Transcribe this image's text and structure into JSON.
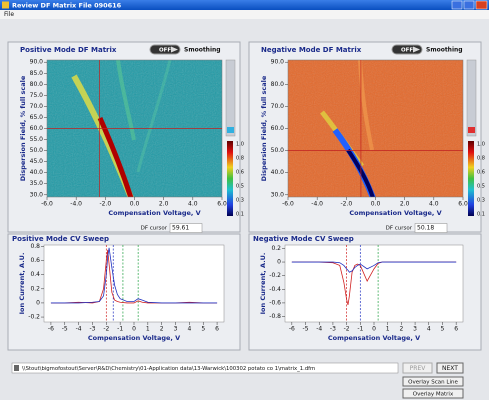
{
  "window": {
    "title": "Review DF Matrix File  090616",
    "menu": "File"
  },
  "matrices": [
    {
      "title": "Positive Mode DF Matrix",
      "toggle": "OFF",
      "toggle_label": "Smoothing",
      "ylabel": "Dispersion Field, % full scale",
      "xlabel": "Compensation Voltage, V",
      "xlim": [
        -6,
        6
      ],
      "ylim": [
        29,
        91
      ],
      "xticks": [
        {
          "value": -6,
          "label": "-6.0"
        },
        {
          "value": -4,
          "label": "-4.0"
        },
        {
          "value": -2,
          "label": "-2.0"
        },
        {
          "value": 0,
          "label": "0.0"
        },
        {
          "value": 2,
          "label": "2.0"
        },
        {
          "value": 4,
          "label": "4.0"
        },
        {
          "value": 6,
          "label": "6.0"
        }
      ],
      "yticks": [
        {
          "value": 90,
          "label": "90.0"
        },
        {
          "value": 85,
          "label": "85.0"
        },
        {
          "value": 80,
          "label": "80.0"
        },
        {
          "value": 75,
          "label": "75.0"
        },
        {
          "value": 70,
          "label": "70.0"
        },
        {
          "value": 65,
          "label": "65.0"
        },
        {
          "value": 60,
          "label": "60.0"
        },
        {
          "value": 55,
          "label": "55.0"
        },
        {
          "value": 50,
          "label": "50.0"
        },
        {
          "value": 45,
          "label": "45.0"
        },
        {
          "value": 40,
          "label": "40.0"
        },
        {
          "value": 35,
          "label": "35.0"
        },
        {
          "value": 30,
          "label": "30.0"
        }
      ],
      "cursor": {
        "x": -2.4,
        "y": 60
      },
      "colorbar": [
        "1.0",
        "0.8",
        "0.6",
        "0.5",
        "0.3",
        "0.1"
      ],
      "df_cursor_label": "DF cursor",
      "df_cursor": "59.61"
    },
    {
      "title": "Negative Mode DF Matrix",
      "toggle": "OFF",
      "toggle_label": "Smoothing",
      "ylabel": "Dispersion Field, % full scale",
      "xlabel": "Compensation Voltage, V",
      "xlim": [
        -6,
        6
      ],
      "ylim": [
        29,
        91
      ],
      "xticks": [
        {
          "value": -6,
          "label": "-6.0"
        },
        {
          "value": -4,
          "label": "-4.0"
        },
        {
          "value": -2,
          "label": "-2.0"
        },
        {
          "value": 0,
          "label": "0.0"
        },
        {
          "value": 2,
          "label": "2.0"
        },
        {
          "value": 4,
          "label": "4.0"
        },
        {
          "value": 6,
          "label": "6.0"
        }
      ],
      "yticks": [
        {
          "value": 90,
          "label": "90.0"
        },
        {
          "value": 80,
          "label": "80.0"
        },
        {
          "value": 70,
          "label": "70.0"
        },
        {
          "value": 60,
          "label": "60.0"
        },
        {
          "value": 50,
          "label": "50.0"
        },
        {
          "value": 40,
          "label": "40.0"
        },
        {
          "value": 30,
          "label": "30.0"
        }
      ],
      "cursor": {
        "x": -1.0,
        "y": 50
      },
      "colorbar": [
        "1.0",
        "0.8",
        "0.6",
        "0.5",
        "0.3",
        "0.1"
      ],
      "df_cursor_label": "DF cursor",
      "df_cursor": "50.18"
    }
  ],
  "sweeps": [
    {
      "title": "Positive Mode CV Sweep",
      "ylabel": "Ion Current, A.U.",
      "xlabel": "Compensation Voltage, V",
      "xlim": [
        -6.5,
        6.5
      ],
      "ylim": [
        -0.27,
        0.82
      ],
      "xticks": [
        -6,
        -5,
        -4,
        -3,
        -2,
        -1,
        0,
        1,
        2,
        3,
        4,
        5,
        6
      ],
      "yticks": [
        0.8,
        0.6,
        0.4,
        0.2,
        0,
        -0.2
      ],
      "x": [
        -6,
        -5,
        -4,
        -3,
        -2.5,
        -2.2,
        -2.0,
        -1.9,
        -1.8,
        -1.6,
        -1.4,
        -1.2,
        -1.0,
        -0.5,
        0,
        0.3,
        0.6,
        1,
        2,
        3,
        4,
        5,
        6
      ],
      "series": [
        {
          "color": "#d02020",
          "values": [
            0,
            0,
            0.01,
            0,
            0.02,
            0.2,
            0.6,
            0.75,
            0.55,
            0.15,
            0.04,
            0.02,
            0.01,
            0,
            0,
            0.03,
            0.01,
            0,
            0,
            0,
            0.01,
            0,
            0
          ]
        },
        {
          "color": "#2030c0",
          "values": [
            0,
            0,
            0,
            0.01,
            0.02,
            0.1,
            0.4,
            0.65,
            0.78,
            0.5,
            0.25,
            0.12,
            0.06,
            0.02,
            0.02,
            0.06,
            0.04,
            0.01,
            0,
            0,
            0,
            0,
            0
          ]
        }
      ],
      "cursors": [
        {
          "x": -2,
          "color": "#d02020"
        },
        {
          "x": -1.5,
          "color": "#2030c0"
        },
        {
          "x": -0.8,
          "color": "#20a040"
        },
        {
          "x": 0.3,
          "color": "#20a040"
        }
      ]
    },
    {
      "title": "Negative Mode CV Sweep",
      "ylabel": "Ion Current, A.U.",
      "xlabel": "Compensation Voltage, V",
      "xlim": [
        -6.5,
        6.5
      ],
      "ylim": [
        -0.88,
        0.25
      ],
      "xticks": [
        -6,
        -5,
        -4,
        -3,
        -2,
        -1,
        0,
        1,
        2,
        3,
        4,
        5,
        6
      ],
      "yticks": [
        0.2,
        0,
        -0.2,
        -0.4,
        -0.6,
        -0.8
      ],
      "x": [
        -6,
        -5,
        -4,
        -3,
        -2.5,
        -2.2,
        -2.0,
        -1.9,
        -1.8,
        -1.6,
        -1.4,
        -1.2,
        -1.0,
        -0.5,
        0,
        0.3,
        0.6,
        1,
        2,
        3,
        4,
        5,
        6
      ],
      "series": [
        {
          "color": "#d02020",
          "values": [
            0,
            0,
            0,
            -0.01,
            -0.05,
            -0.3,
            -0.55,
            -0.63,
            -0.5,
            -0.15,
            -0.05,
            -0.03,
            -0.05,
            -0.28,
            -0.1,
            -0.02,
            0,
            0,
            0,
            0,
            0,
            0,
            0
          ]
        },
        {
          "color": "#2030c0",
          "values": [
            0,
            0,
            0,
            0,
            -0.01,
            -0.05,
            -0.1,
            -0.12,
            -0.15,
            -0.13,
            -0.08,
            -0.05,
            -0.03,
            -0.1,
            -0.05,
            -0.01,
            0,
            0,
            0,
            0,
            0,
            0,
            0
          ]
        }
      ],
      "cursors": [
        {
          "x": -2,
          "color": "#d02020"
        },
        {
          "x": -1,
          "color": "#2030c0"
        },
        {
          "x": 0.3,
          "color": "#20a040"
        }
      ]
    }
  ],
  "file_path": "\\\\Stout\\bigmofostout\\Server\\R&D\\Chemistry\\01-Application data\\13-Warwick\\100302 potato co 1\\matrix_1.dfm",
  "buttons": {
    "prev": "PREV",
    "next": "NEXT",
    "overlay_scan": "Overlay Scan Line",
    "overlay_matrix": "Overlay Matrix"
  }
}
